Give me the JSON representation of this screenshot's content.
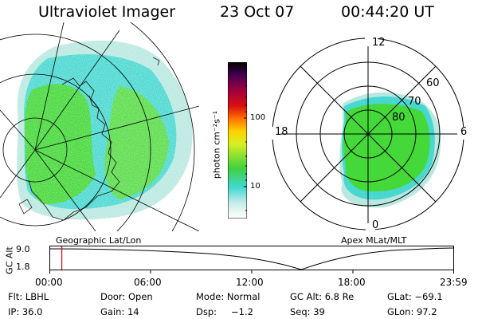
{
  "header": {
    "title": "Ultraviolet Imager",
    "date": "23 Oct 07",
    "time": "00:44:20 UT"
  },
  "colorbar": {
    "unit_label": "photon cm⁻²s⁻¹",
    "ticks": [
      "100",
      "10"
    ],
    "scale": "log"
  },
  "panels": {
    "left_label": "Geographic Lat/Lon",
    "right_label": "Apex MLat/MLT"
  },
  "polar": {
    "mlt_labels": {
      "top": "12",
      "right": "6",
      "bottom": "0",
      "left": "18"
    },
    "lat_labels": [
      "80",
      "70",
      "60"
    ]
  },
  "altitude_plot": {
    "ylabel": "GC Alt",
    "yticks": [
      "9.0",
      "1.8"
    ],
    "xticks": [
      "00:00",
      "06:00",
      "12:00",
      "18:00",
      "23:59"
    ],
    "marker_time": "00:44:20"
  },
  "status": {
    "flt": "Flt: LBHL",
    "door": "Door: Open",
    "mode": "Mode: Normal",
    "gc_alt": "GC Alt: 6.8 Re",
    "glat": "GLat: −69.1",
    "ip": "IP: 36.0",
    "gain": "Gain: 14",
    "dsp_label": "Dsp:",
    "dsp_value": "−1.2",
    "seq": "Seq: 39",
    "glon": "GLon:  97.2"
  },
  "colors": {
    "aurora_green": "#44d838",
    "aurora_cyan": "#48d8d0",
    "aurora_pale": "#b8e8e0",
    "marker": "#e00000"
  }
}
